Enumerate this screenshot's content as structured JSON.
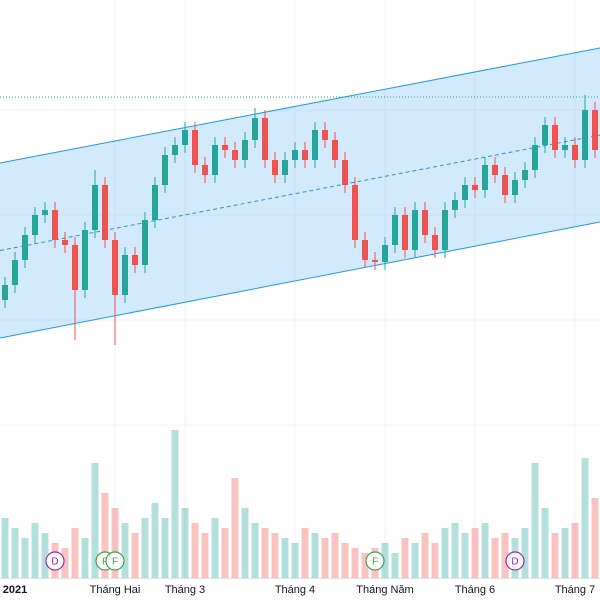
{
  "chart_data": {
    "type": "candlestick",
    "categories": [
      null,
      "2021",
      null,
      null,
      null,
      null,
      null,
      null,
      null,
      null,
      null,
      "Tháng Hai",
      null,
      null,
      null,
      null,
      null,
      null,
      "Tháng 3",
      null,
      null,
      null,
      null,
      null,
      null,
      null,
      null,
      null,
      null,
      "Tháng 4",
      null,
      null,
      null,
      null,
      null,
      null,
      null,
      null,
      "Tháng Năm",
      null,
      null,
      null,
      null,
      null,
      null,
      null,
      null,
      "Tháng 6",
      null,
      null,
      null,
      null,
      null,
      null,
      null,
      null,
      null,
      "Tháng 7",
      null,
      null
    ],
    "open": [
      300,
      315,
      340,
      365,
      385,
      390,
      360,
      355,
      310,
      370,
      415,
      360,
      305,
      345,
      335,
      380,
      415,
      445,
      455,
      470,
      435,
      425,
      455,
      450,
      440,
      460,
      482,
      440,
      425,
      440,
      450,
      440,
      470,
      460,
      440,
      415,
      360,
      340,
      338,
      355,
      385,
      350,
      390,
      365,
      350,
      390,
      400,
      415,
      410,
      435,
      425,
      405,
      420,
      430,
      455,
      475,
      450,
      455,
      440,
      490
    ],
    "high": [
      323,
      348,
      373,
      393,
      398,
      398,
      368,
      363,
      378,
      430,
      423,
      368,
      353,
      353,
      388,
      423,
      453,
      463,
      478,
      478,
      443,
      463,
      463,
      458,
      468,
      492,
      490,
      448,
      448,
      458,
      458,
      478,
      478,
      468,
      448,
      423,
      368,
      348,
      363,
      393,
      393,
      398,
      398,
      373,
      398,
      408,
      423,
      423,
      443,
      443,
      433,
      428,
      438,
      463,
      483,
      483,
      463,
      463,
      505,
      498
    ],
    "low": [
      292,
      307,
      332,
      357,
      377,
      352,
      347,
      260,
      302,
      362,
      352,
      255,
      297,
      327,
      327,
      372,
      407,
      437,
      447,
      427,
      417,
      417,
      442,
      432,
      432,
      452,
      432,
      417,
      417,
      432,
      432,
      432,
      452,
      432,
      407,
      352,
      332,
      330,
      330,
      347,
      342,
      342,
      357,
      342,
      342,
      382,
      392,
      402,
      402,
      417,
      397,
      397,
      412,
      422,
      447,
      442,
      442,
      432,
      432,
      442
    ],
    "close": [
      315,
      340,
      365,
      385,
      390,
      360,
      355,
      310,
      370,
      415,
      360,
      305,
      345,
      335,
      380,
      415,
      445,
      455,
      470,
      435,
      425,
      455,
      450,
      440,
      460,
      482,
      440,
      425,
      440,
      450,
      440,
      470,
      460,
      440,
      415,
      360,
      340,
      338,
      355,
      385,
      350,
      390,
      365,
      350,
      390,
      400,
      415,
      410,
      435,
      425,
      405,
      420,
      430,
      455,
      475,
      450,
      455,
      440,
      490,
      450
    ],
    "volume": [
      60,
      50,
      40,
      55,
      45,
      35,
      30,
      50,
      40,
      115,
      85,
      70,
      55,
      45,
      60,
      75,
      60,
      148,
      70,
      55,
      45,
      60,
      50,
      100,
      70,
      55,
      50,
      45,
      40,
      35,
      50,
      45,
      40,
      45,
      35,
      30,
      25,
      30,
      35,
      25,
      40,
      35,
      45,
      35,
      50,
      55,
      45,
      50,
      55,
      40,
      45,
      40,
      50,
      115,
      70,
      45,
      50,
      55,
      120,
      80
    ],
    "ylim": [
      0,
      600
    ],
    "volume_lim": [
      0,
      160
    ],
    "channel": {
      "upper": [
        437,
        552
      ],
      "lower": [
        262,
        378
      ],
      "color": "#2196f3"
    },
    "level": 503,
    "up_color": "#26a69a",
    "down_color": "#ef5350",
    "events": [
      {
        "index": 5,
        "label": "D",
        "color": "#9c27b0"
      },
      {
        "index": 10,
        "label": "F",
        "color": "#43a047"
      },
      {
        "index": 11,
        "label": "F",
        "color": "#43a047"
      },
      {
        "index": 37,
        "label": "F",
        "color": "#43a047"
      },
      {
        "index": 51,
        "label": "D",
        "color": "#9c27b0"
      }
    ]
  }
}
